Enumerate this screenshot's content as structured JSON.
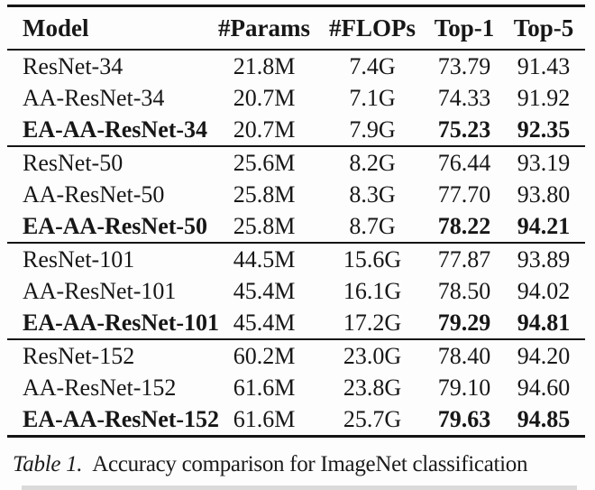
{
  "page": {
    "background_color": "#fdfdfd",
    "text_color": "#171717",
    "rule_color": "#151515"
  },
  "table": {
    "columns": [
      "Model",
      "#Params",
      "#FLOPs",
      "Top-1",
      "Top-5"
    ],
    "groups": [
      {
        "rows": [
          {
            "model": "ResNet-34",
            "params": "21.8M",
            "flops": "7.4G",
            "top1": "73.79",
            "top5": "91.43",
            "highlight": false
          },
          {
            "model": "AA-ResNet-34",
            "params": "20.7M",
            "flops": "7.1G",
            "top1": "74.33",
            "top5": "91.92",
            "highlight": false
          },
          {
            "model": "EA-AA-ResNet-34",
            "params": "20.7M",
            "flops": "7.9G",
            "top1": "75.23",
            "top5": "92.35",
            "highlight": true
          }
        ]
      },
      {
        "rows": [
          {
            "model": "ResNet-50",
            "params": "25.6M",
            "flops": "8.2G",
            "top1": "76.44",
            "top5": "93.19",
            "highlight": false
          },
          {
            "model": "AA-ResNet-50",
            "params": "25.8M",
            "flops": "8.3G",
            "top1": "77.70",
            "top5": "93.80",
            "highlight": false
          },
          {
            "model": "EA-AA-ResNet-50",
            "params": "25.8M",
            "flops": "8.7G",
            "top1": "78.22",
            "top5": "94.21",
            "highlight": true
          }
        ]
      },
      {
        "rows": [
          {
            "model": "ResNet-101",
            "params": "44.5M",
            "flops": "15.6G",
            "top1": "77.87",
            "top5": "93.89",
            "highlight": false
          },
          {
            "model": "AA-ResNet-101",
            "params": "45.4M",
            "flops": "16.1G",
            "top1": "78.50",
            "top5": "94.02",
            "highlight": false
          },
          {
            "model": "EA-AA-ResNet-101",
            "params": "45.4M",
            "flops": "17.2G",
            "top1": "79.29",
            "top5": "94.81",
            "highlight": true
          }
        ]
      },
      {
        "rows": [
          {
            "model": "ResNet-152",
            "params": "60.2M",
            "flops": "23.0G",
            "top1": "78.40",
            "top5": "94.20",
            "highlight": false
          },
          {
            "model": "AA-ResNet-152",
            "params": "61.6M",
            "flops": "23.8G",
            "top1": "79.10",
            "top5": "94.60",
            "highlight": false
          },
          {
            "model": "EA-AA-ResNet-152",
            "params": "61.6M",
            "flops": "25.7G",
            "top1": "79.63",
            "top5": "94.85",
            "highlight": true
          }
        ]
      }
    ]
  },
  "caption": {
    "label": "Table 1.",
    "text": "Accuracy comparison for ImageNet classification"
  }
}
